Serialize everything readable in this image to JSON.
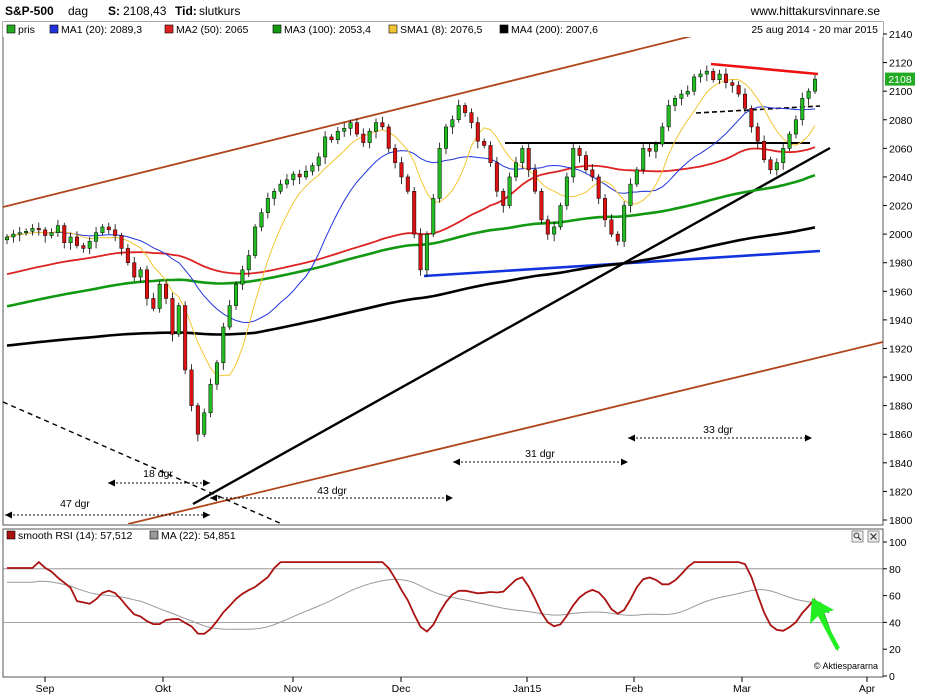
{
  "header": {
    "symbol": "S&P-500",
    "period": "dag",
    "last_label": "S:",
    "last_value": "2108,43",
    "time_label": "Tid:",
    "time_value": "slutkurs",
    "website": "www.hittakursvinnare.se",
    "date_range": "25 aug 2014 - 20 mar 2015"
  },
  "legend": [
    {
      "label": "pris",
      "color": "#22aa22"
    },
    {
      "label": "MA1 (20): 2089,3",
      "color": "#2233dd"
    },
    {
      "label": "MA2 (50): 2065",
      "color": "#dd2222"
    },
    {
      "label": "MA3 (100): 2053,4",
      "color": "#119911"
    },
    {
      "label": "SMA1 (8): 2076,5",
      "color": "#f2c531"
    },
    {
      "label": "MA4 (200): 2007,6",
      "color": "#000000"
    }
  ],
  "price_tag": "2108",
  "annotations": {
    "a47": "47 dgr",
    "a18": "18 dgr",
    "a43": "43 dgr",
    "a31": "31 dgr",
    "a33": "33 dgr"
  },
  "rsi_panel": {
    "legend": [
      {
        "label": "smooth RSI (14): 57,512",
        "color": "#aa1111"
      },
      {
        "label": "MA (22): 54,851",
        "color": "#999999"
      }
    ],
    "credit": "© Aktiespararna"
  },
  "colors": {
    "up": "#22bb22",
    "down": "#dd1111",
    "ma20": "#2233dd",
    "ma50": "#dd2222",
    "ma100": "#119911",
    "sma8": "#f2c531",
    "ma200": "#000000",
    "channel": "#b0441a",
    "rsi": "#aa1111",
    "rsi_ma": "#999999"
  },
  "chart_data": [
    {
      "type": "line",
      "title": "S&P-500 - dag",
      "subtitle": "25 aug 2014 - 20 mar 2015",
      "y_ticks": [
        1800,
        1820,
        1840,
        1860,
        1880,
        1900,
        1920,
        1940,
        1960,
        1980,
        2000,
        2020,
        2040,
        2060,
        2080,
        2100,
        2120,
        2140
      ],
      "ylim": [
        1797,
        2150
      ],
      "x_tick_labels": [
        "Sep",
        "Okt",
        "Nov",
        "Dec",
        "Jan15",
        "Feb",
        "Mar",
        "Apr"
      ],
      "last_price": 2108.43,
      "series": [
        {
          "name": "pris",
          "values": [
            1998,
            2000,
            2001,
            2002,
            2004,
            2003,
            1999,
            2001,
            2006,
            1994,
            1998,
            1992,
            1990,
            1995,
            2001,
            2005,
            2003,
            1999,
            1990,
            1980,
            1970,
            1975,
            1955,
            1948,
            1965,
            1955,
            1930,
            1950,
            1905,
            1880,
            1860,
            1875,
            1895,
            1910,
            1935,
            1950,
            1965,
            1975,
            1985,
            2005,
            2015,
            2025,
            2030,
            2035,
            2038,
            2042,
            2040,
            2044,
            2048,
            2054,
            2068,
            2066,
            2072,
            2074,
            2078,
            2070,
            2064,
            2072,
            2078,
            2075,
            2060,
            2050,
            2040,
            2030,
            2000,
            1975,
            2000,
            2025,
            2060,
            2075,
            2080,
            2090,
            2085,
            2078,
            2065,
            2062,
            2050,
            2030,
            2020,
            2040,
            2050,
            2060,
            2045,
            2030,
            2010,
            2000,
            2005,
            2020,
            2040,
            2060,
            2055,
            2045,
            2040,
            2025,
            2010,
            2000,
            1995,
            2020,
            2035,
            2045,
            2060,
            2058,
            2063,
            2075,
            2090,
            2095,
            2098,
            2100,
            2110,
            2112,
            2114,
            2108,
            2112,
            2106,
            2104,
            2098,
            2088,
            2075,
            2065,
            2052,
            2045,
            2050,
            2060,
            2070,
            2080,
            2095,
            2100,
            2108.43
          ]
        },
        {
          "name": "MA1 (20)",
          "value": 2089.3
        },
        {
          "name": "MA2 (50)",
          "value": 2065
        },
        {
          "name": "MA3 (100)",
          "value": 2053.4
        },
        {
          "name": "SMA1 (8)",
          "value": 2076.5
        },
        {
          "name": "MA4 (200)",
          "value": 2007.6
        }
      ],
      "annotations": [
        "47 dgr",
        "18 dgr",
        "43 dgr",
        "31 dgr",
        "33 dgr"
      ]
    },
    {
      "type": "line",
      "title": "smooth RSI (14)",
      "y_ticks": [
        0,
        20,
        40,
        60,
        80,
        100
      ],
      "ylim": [
        0,
        100
      ],
      "reference_lines": [
        40,
        80
      ],
      "series": [
        {
          "name": "smooth RSI (14)",
          "last": 57.512
        },
        {
          "name": "MA (22)",
          "last": 54.851
        }
      ]
    }
  ]
}
